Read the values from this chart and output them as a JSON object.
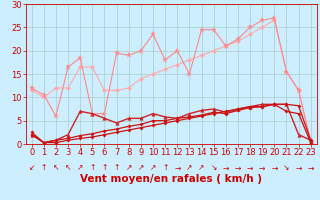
{
  "background_color": "#cceeff",
  "grid_color": "#aacccc",
  "xlabel": "Vent moyen/en rafales ( km/h )",
  "xlabel_color": "#cc0000",
  "xlabel_fontsize": 7.5,
  "x_ticks": [
    0,
    1,
    2,
    3,
    4,
    5,
    6,
    7,
    8,
    9,
    10,
    11,
    12,
    13,
    14,
    15,
    16,
    17,
    18,
    19,
    20,
    21,
    22,
    23
  ],
  "ylim": [
    0,
    30
  ],
  "yticks": [
    0,
    5,
    10,
    15,
    20,
    25,
    30
  ],
  "tick_color": "#cc0000",
  "tick_fontsize": 6,
  "line_steady1_x": [
    0,
    1,
    2,
    3,
    4,
    5,
    6,
    7,
    8,
    9,
    10,
    11,
    12,
    13,
    14,
    15,
    16,
    17,
    18,
    19,
    20,
    21,
    22,
    23
  ],
  "line_steady1_y": [
    2.0,
    0.3,
    0.3,
    0.8,
    1.2,
    1.5,
    2.0,
    2.5,
    3.0,
    3.5,
    4.0,
    4.5,
    5.0,
    5.5,
    6.0,
    6.5,
    7.0,
    7.5,
    8.0,
    8.0,
    8.5,
    7.0,
    6.5,
    0.3
  ],
  "line_steady1_color": "#cc1111",
  "line_steady1_marker": "D",
  "line_steady1_ms": 2.0,
  "line_steady1_lw": 0.9,
  "line_steady2_x": [
    0,
    1,
    2,
    3,
    4,
    5,
    6,
    7,
    8,
    9,
    10,
    11,
    12,
    13,
    14,
    15,
    16,
    17,
    18,
    19,
    20,
    21,
    22,
    23
  ],
  "line_steady2_y": [
    2.5,
    0.3,
    0.8,
    1.2,
    1.8,
    2.2,
    2.8,
    3.2,
    3.8,
    4.2,
    5.0,
    5.0,
    5.5,
    5.8,
    6.2,
    6.8,
    6.5,
    7.2,
    7.8,
    8.0,
    8.5,
    8.5,
    8.2,
    0.8
  ],
  "line_steady2_color": "#cc1111",
  "line_steady2_marker": "D",
  "line_steady2_ms": 2.0,
  "line_steady2_lw": 0.9,
  "line_gust1_x": [
    0,
    1,
    2,
    3,
    4,
    5,
    6,
    7,
    8,
    9,
    10,
    11,
    12,
    13,
    14,
    15,
    16,
    17,
    18,
    19,
    20,
    21,
    22,
    23
  ],
  "line_gust1_y": [
    2.0,
    0.3,
    0.8,
    2.0,
    7.0,
    6.5,
    5.5,
    4.5,
    5.5,
    5.5,
    6.5,
    5.8,
    5.5,
    6.5,
    7.2,
    7.5,
    6.8,
    7.5,
    8.0,
    8.5,
    8.5,
    8.5,
    2.0,
    0.8
  ],
  "line_gust1_color": "#cc2222",
  "line_gust1_marker": "^",
  "line_gust1_ms": 3.0,
  "line_gust1_lw": 1.0,
  "line_upper1_x": [
    0,
    1,
    2,
    3,
    4,
    5,
    6,
    7,
    8,
    9,
    10,
    11,
    12,
    13,
    14,
    15,
    16,
    17,
    18,
    19,
    20,
    21,
    22,
    23
  ],
  "line_upper1_y": [
    12.0,
    10.5,
    6.0,
    16.5,
    18.5,
    6.5,
    6.5,
    19.5,
    19.0,
    20.0,
    23.5,
    18.0,
    20.0,
    15.0,
    24.5,
    24.5,
    21.0,
    22.5,
    25.0,
    26.5,
    27.0,
    15.5,
    11.5,
    0.5
  ],
  "line_upper1_color": "#ff8888",
  "line_upper1_marker": "*",
  "line_upper1_ms": 5,
  "line_upper1_lw": 0.8,
  "line_upper2_x": [
    0,
    1,
    2,
    3,
    4,
    5,
    6,
    7,
    8,
    9,
    10,
    11,
    12,
    13,
    14,
    15,
    16,
    17,
    18,
    19,
    20,
    21,
    22,
    23
  ],
  "line_upper2_y": [
    11.5,
    10.0,
    12.0,
    12.0,
    16.5,
    16.5,
    11.5,
    11.5,
    12.0,
    14.0,
    15.0,
    16.0,
    17.0,
    18.0,
    19.0,
    20.0,
    21.0,
    22.0,
    23.5,
    25.0,
    26.5,
    15.5,
    11.5,
    0.5
  ],
  "line_upper2_color": "#ffaaaa",
  "line_upper2_marker": "D",
  "line_upper2_ms": 2.5,
  "line_upper2_lw": 0.8,
  "arrows": [
    "↙",
    "↑",
    "↖",
    "↖",
    "↗",
    "↑",
    "↑",
    "↑",
    "↗",
    "↗",
    "↗",
    "↑",
    "→",
    "↗",
    "↗",
    "↘",
    "→",
    "→",
    "→",
    "→",
    "→",
    "↘",
    "→",
    "→"
  ],
  "arrow_color": "#cc0000",
  "arrow_fontsize": 5.5
}
